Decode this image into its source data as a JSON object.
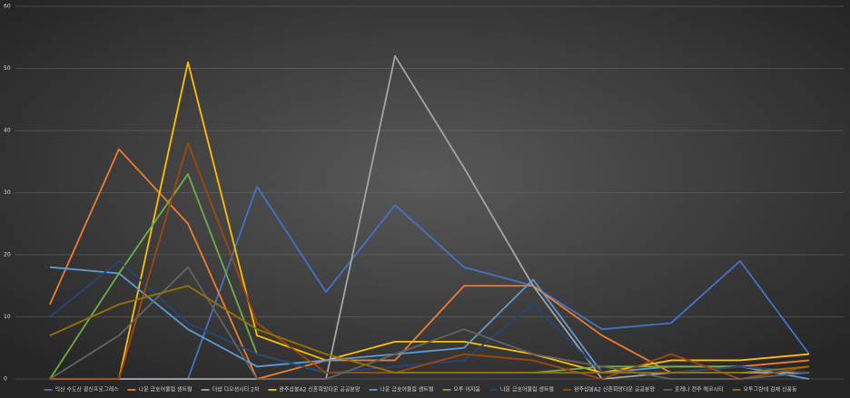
{
  "chart_data": {
    "type": "line",
    "categories": [
      null,
      null,
      null,
      null,
      null,
      null,
      null,
      null,
      null,
      null,
      null,
      null
    ],
    "ylim": [
      0,
      60
    ],
    "yticks": [
      0,
      10,
      20,
      30,
      40,
      50,
      60
    ],
    "grid": true,
    "legend": "bottom",
    "series": [
      {
        "name": "익산 수도산 광신프로그레스",
        "color": "#4472c4",
        "values": [
          0,
          0,
          0,
          31,
          14,
          28,
          18,
          15,
          8,
          9,
          19,
          4
        ]
      },
      {
        "name": "나운 금호어울림 센트럴",
        "color": "#ed7d31",
        "values": [
          12,
          37,
          25,
          0,
          3,
          3,
          15,
          15,
          7,
          1,
          2,
          3
        ]
      },
      {
        "name": "더샵 디오션시티 2차",
        "color": "#a5a5a5",
        "values": [
          0,
          0,
          0,
          0,
          0,
          52,
          34,
          15,
          0,
          1,
          1,
          1
        ]
      },
      {
        "name": "완주삼봉A2 신혼희망타운 공공분양",
        "color": "#ffc000",
        "values": [
          0,
          0,
          51,
          7,
          3,
          6,
          6,
          4,
          1,
          3,
          3,
          4
        ]
      },
      {
        "name": "나운 금호어울림 센트럴",
        "color": "#5b9bd5",
        "values": [
          18,
          17,
          8,
          2,
          3,
          4,
          5,
          16,
          1,
          2,
          2,
          0
        ]
      },
      {
        "name": "오투 이지움",
        "color": "#70ad47",
        "values": [
          0,
          17,
          33,
          4,
          1,
          1,
          1,
          1,
          2,
          2,
          2,
          1
        ]
      },
      {
        "name": "나운 금호어울림 센트럴",
        "color": "#264478",
        "values": [
          10,
          19,
          9,
          4,
          1,
          2,
          3,
          12,
          1,
          1,
          2,
          1
        ]
      },
      {
        "name": "완주삼봉A2 신혼희망타운 공공분양",
        "color": "#9e480e",
        "values": [
          0,
          0,
          38,
          9,
          1,
          1,
          4,
          3,
          0,
          4,
          0,
          2
        ]
      },
      {
        "name": "포레나 전주 에코시티",
        "color": "#636363",
        "values": [
          0,
          7,
          18,
          0,
          0,
          4,
          8,
          4,
          2,
          0,
          0,
          1
        ]
      },
      {
        "name": "오투그란데 김제 신풍동",
        "color": "#997300",
        "values": [
          7,
          12,
          15,
          8,
          4,
          1,
          1,
          1,
          1,
          1,
          1,
          2
        ]
      }
    ]
  }
}
